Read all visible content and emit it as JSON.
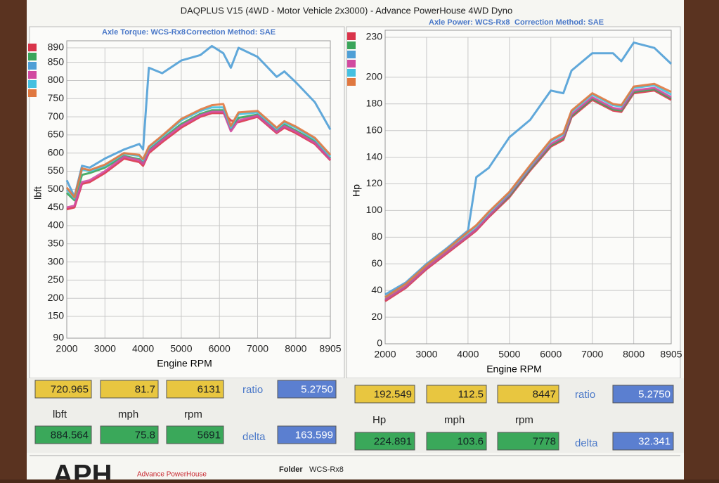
{
  "header": {
    "title": "DAQPLUS V15 (4WD - Motor Vehicle 2x3000) - Advance PowerHouse 4WD Dyno"
  },
  "chart_data": [
    {
      "type": "line",
      "subtitle": "Axle Torque: WCS-Rx8",
      "correction": "Correction Method: SAE",
      "x_label": "Engine RPM",
      "y_label": "lbft",
      "x": [
        2000,
        2200,
        2400,
        2600,
        3000,
        3500,
        3900,
        4000,
        4150,
        4500,
        5000,
        5500,
        5800,
        6100,
        6300,
        6500,
        7000,
        7500,
        7700,
        8000,
        8500,
        8905
      ],
      "xlim": [
        2000,
        8905
      ],
      "xticks": [
        2000,
        3000,
        4000,
        5000,
        6000,
        7000,
        8000,
        8905
      ],
      "ylim": [
        90,
        890
      ],
      "yticks": [
        90,
        150,
        200,
        250,
        300,
        350,
        400,
        450,
        500,
        550,
        600,
        650,
        700,
        750,
        800,
        850,
        890
      ],
      "grid": true,
      "series": [
        {
          "color": "#d9344a",
          "values": [
            445,
            450,
            515,
            520,
            545,
            585,
            575,
            565,
            600,
            630,
            670,
            700,
            710,
            710,
            690,
            685,
            700,
            655,
            670,
            655,
            625,
            580
          ]
        },
        {
          "color": "#3aa55a",
          "values": [
            490,
            470,
            540,
            545,
            560,
            592,
            583,
            572,
            608,
            638,
            680,
            708,
            718,
            718,
            665,
            697,
            706,
            660,
            678,
            662,
            632,
            585
          ]
        },
        {
          "color": "#4f9fd6",
          "values": [
            525,
            480,
            565,
            560,
            585,
            610,
            625,
            610,
            835,
            820,
            855,
            870,
            895,
            875,
            835,
            890,
            865,
            810,
            825,
            795,
            740,
            665
          ]
        },
        {
          "color": "#d14aa0",
          "values": [
            450,
            455,
            520,
            525,
            550,
            590,
            580,
            570,
            605,
            635,
            675,
            704,
            714,
            714,
            660,
            690,
            703,
            658,
            674,
            659,
            628,
            582
          ]
        },
        {
          "color": "#45c0e0",
          "values": [
            500,
            475,
            555,
            550,
            565,
            598,
            592,
            580,
            615,
            645,
            690,
            716,
            726,
            726,
            670,
            707,
            712,
            666,
            684,
            670,
            638,
            590
          ]
        },
        {
          "color": "#e07840",
          "values": [
            505,
            478,
            558,
            553,
            568,
            600,
            595,
            583,
            618,
            648,
            694,
            720,
            732,
            735,
            675,
            712,
            716,
            670,
            688,
            673,
            642,
            595
          ]
        }
      ]
    },
    {
      "type": "line",
      "subtitle": "Axle Power: WCS-Rx8",
      "correction": "Correction Method: SAE",
      "x_label": "Engine RPM",
      "y_label": "Hp",
      "x": [
        2000,
        2500,
        3000,
        3500,
        4000,
        4200,
        4500,
        5000,
        5500,
        6000,
        6300,
        6500,
        7000,
        7500,
        7700,
        8000,
        8500,
        8905
      ],
      "xlim": [
        2000,
        8905
      ],
      "xticks": [
        2000,
        3000,
        4000,
        5000,
        6000,
        7000,
        8000,
        8905
      ],
      "ylim": [
        0,
        230
      ],
      "yticks": [
        0,
        20,
        40,
        60,
        80,
        100,
        120,
        140,
        160,
        180,
        200,
        230
      ],
      "grid": true,
      "series": [
        {
          "color": "#d9344a",
          "values": [
            32,
            42,
            56,
            68,
            80,
            85,
            95,
            110,
            130,
            148,
            153,
            170,
            183,
            175,
            174,
            188,
            190,
            183
          ]
        },
        {
          "color": "#3aa55a",
          "values": [
            33,
            43,
            57,
            69,
            81,
            86,
            96,
            111,
            131,
            149,
            154,
            171,
            184,
            176,
            175,
            189,
            191,
            184
          ]
        },
        {
          "color": "#4f9fd6",
          "values": [
            37,
            46,
            60,
            72,
            85,
            125,
            132,
            155,
            168,
            190,
            188,
            205,
            218,
            218,
            212,
            226,
            222,
            210
          ]
        },
        {
          "color": "#d14aa0",
          "values": [
            33,
            43,
            57,
            69,
            81,
            86,
            96,
            112,
            132,
            150,
            155,
            172,
            185,
            177,
            176,
            190,
            192,
            185
          ]
        },
        {
          "color": "#45c0e0",
          "values": [
            35,
            45,
            59,
            71,
            83,
            88,
            98,
            113,
            133,
            152,
            157,
            174,
            187,
            179,
            178,
            192,
            194,
            187
          ]
        },
        {
          "color": "#e07840",
          "values": [
            35,
            45,
            59,
            71,
            84,
            89,
            99,
            114,
            134,
            153,
            158,
            175,
            188,
            180,
            179,
            193,
            195,
            189
          ]
        }
      ]
    }
  ],
  "readouts": [
    {
      "row1": [
        "720.965",
        "81.7",
        "6131"
      ],
      "ratio_label": "ratio",
      "ratio": "5.2750",
      "units": [
        "lbft",
        "mph",
        "rpm"
      ],
      "row2": [
        "884.564",
        "75.8",
        "5691"
      ],
      "delta_label": "delta",
      "delta": "163.599"
    },
    {
      "row1": [
        "192.549",
        "112.5",
        "8447"
      ],
      "ratio_label": "ratio",
      "ratio": "5.2750",
      "units": [
        "Hp",
        "mph",
        "rpm"
      ],
      "row2": [
        "224.891",
        "103.6",
        "7778"
      ],
      "delta_label": "delta",
      "delta": "32.341"
    }
  ],
  "footer": {
    "logo": "APH",
    "company": "Advance PowerHouse",
    "folder_label": "Folder",
    "folder": "WCS-Rx8"
  }
}
